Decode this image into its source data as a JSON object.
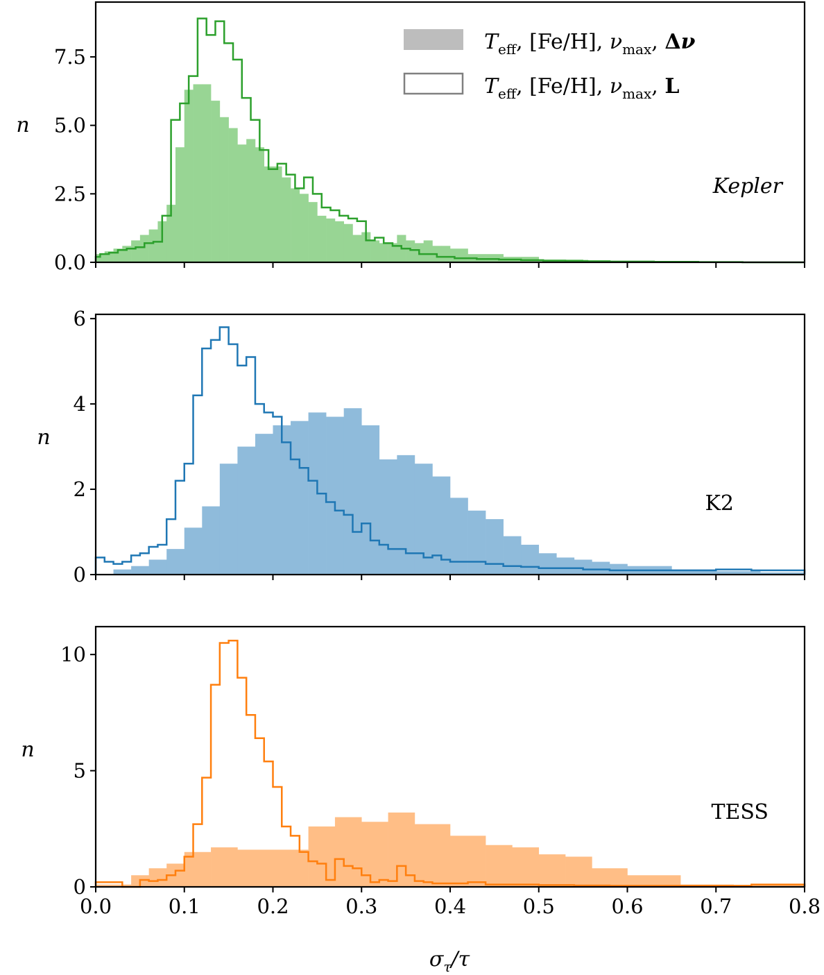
{
  "chart_data": {
    "type": "histogram",
    "xlabel": "σ_τ/τ",
    "xlim": [
      0.0,
      0.8
    ],
    "xticks": [
      0.0,
      0.1,
      0.2,
      0.3,
      0.4,
      0.5,
      0.6,
      0.7,
      0.8
    ],
    "xtick_labels": [
      "0.0",
      "0.1",
      "0.2",
      "0.3",
      "0.4",
      "0.5",
      "0.6",
      "0.7",
      "0.8"
    ],
    "legend": {
      "placement": "top-right",
      "entries": [
        {
          "style": "filled",
          "label": "T_eff, [Fe/H], ν_max, Δν",
          "color": "#bdbdbd"
        },
        {
          "style": "step",
          "label": "T_eff, [Fe/H], ν_max, L",
          "color": "#808080"
        }
      ]
    },
    "panels": [
      {
        "name": "Kepler",
        "label": "Kepler",
        "label_italic": true,
        "ylabel": "n",
        "ylim": [
          0,
          9.5
        ],
        "yticks": [
          0.0,
          2.5,
          5.0,
          7.5
        ],
        "ytick_labels": [
          "0.0",
          "2.5",
          "5.0",
          "7.5"
        ],
        "color": "#2ca02c",
        "fill_color": "#98d594",
        "filled_hist": {
          "bin_edges": [
            0.0,
            0.01,
            0.02,
            0.03,
            0.04,
            0.05,
            0.06,
            0.07,
            0.08,
            0.09,
            0.1,
            0.11,
            0.12,
            0.13,
            0.14,
            0.15,
            0.16,
            0.17,
            0.18,
            0.19,
            0.2,
            0.21,
            0.22,
            0.23,
            0.24,
            0.25,
            0.26,
            0.27,
            0.28,
            0.29,
            0.3,
            0.31,
            0.32,
            0.33,
            0.34,
            0.35,
            0.36,
            0.37,
            0.38,
            0.39,
            0.4,
            0.42,
            0.44,
            0.46,
            0.48,
            0.5,
            0.52,
            0.55,
            0.6,
            0.7,
            0.8
          ],
          "counts": [
            0.3,
            0.4,
            0.5,
            0.6,
            0.8,
            1.0,
            1.2,
            1.5,
            2.1,
            4.2,
            6.3,
            6.5,
            6.5,
            5.9,
            5.3,
            4.9,
            4.3,
            4.5,
            4.2,
            3.5,
            3.5,
            3.1,
            2.7,
            2.5,
            2.2,
            1.7,
            1.6,
            1.5,
            1.4,
            1.0,
            1.1,
            0.8,
            0.7,
            0.7,
            1.0,
            0.8,
            0.7,
            0.8,
            0.6,
            0.6,
            0.5,
            0.3,
            0.3,
            0.2,
            0.2,
            0.1,
            0.1,
            0.05,
            0.03,
            0.0
          ]
        },
        "step_hist": {
          "bin_edges": [
            0.0,
            0.005,
            0.015,
            0.025,
            0.035,
            0.045,
            0.055,
            0.065,
            0.075,
            0.085,
            0.095,
            0.105,
            0.115,
            0.125,
            0.135,
            0.145,
            0.155,
            0.165,
            0.175,
            0.185,
            0.195,
            0.205,
            0.215,
            0.225,
            0.235,
            0.245,
            0.255,
            0.265,
            0.275,
            0.285,
            0.295,
            0.305,
            0.315,
            0.325,
            0.335,
            0.345,
            0.355,
            0.365,
            0.375,
            0.385,
            0.395,
            0.405,
            0.43,
            0.455,
            0.48,
            0.505,
            0.53,
            0.555,
            0.58,
            0.63,
            0.68,
            0.73,
            0.8
          ],
          "counts": [
            0.2,
            0.3,
            0.35,
            0.45,
            0.5,
            0.55,
            0.7,
            0.75,
            1.7,
            5.2,
            5.8,
            6.8,
            8.9,
            8.3,
            8.8,
            8.0,
            7.4,
            6.0,
            5.2,
            4.1,
            3.4,
            3.6,
            3.2,
            2.7,
            3.1,
            2.5,
            2.0,
            1.9,
            1.7,
            1.6,
            1.5,
            0.8,
            0.9,
            0.7,
            0.6,
            0.5,
            0.45,
            0.3,
            0.3,
            0.2,
            0.2,
            0.15,
            0.12,
            0.1,
            0.08,
            0.06,
            0.05,
            0.04,
            0.03,
            0.02,
            0.01,
            0.0
          ]
        }
      },
      {
        "name": "K2",
        "label": "K2",
        "label_italic": false,
        "ylabel": "n",
        "ylim": [
          0,
          6.1
        ],
        "yticks": [
          0,
          2,
          4,
          6
        ],
        "ytick_labels": [
          "0",
          "2",
          "4",
          "6"
        ],
        "color": "#1f77b4",
        "fill_color": "#8fbbdb",
        "filled_hist": {
          "bin_edges": [
            0.0,
            0.02,
            0.04,
            0.06,
            0.08,
            0.1,
            0.12,
            0.14,
            0.16,
            0.18,
            0.2,
            0.22,
            0.24,
            0.26,
            0.28,
            0.3,
            0.32,
            0.34,
            0.36,
            0.38,
            0.4,
            0.42,
            0.44,
            0.46,
            0.48,
            0.5,
            0.52,
            0.54,
            0.56,
            0.58,
            0.6,
            0.65,
            0.7,
            0.75,
            0.8
          ],
          "counts": [
            0.0,
            0.12,
            0.2,
            0.35,
            0.6,
            1.1,
            1.6,
            2.6,
            3.0,
            3.3,
            3.5,
            3.6,
            3.8,
            3.7,
            3.9,
            3.5,
            2.7,
            2.8,
            2.6,
            2.3,
            1.8,
            1.5,
            1.3,
            0.9,
            0.7,
            0.5,
            0.4,
            0.35,
            0.3,
            0.25,
            0.2,
            0.12,
            0.08,
            0.05
          ]
        },
        "step_hist": {
          "bin_edges": [
            0.0,
            0.01,
            0.02,
            0.03,
            0.04,
            0.05,
            0.06,
            0.07,
            0.08,
            0.09,
            0.1,
            0.11,
            0.12,
            0.13,
            0.14,
            0.15,
            0.16,
            0.17,
            0.18,
            0.19,
            0.2,
            0.21,
            0.22,
            0.23,
            0.24,
            0.25,
            0.26,
            0.27,
            0.28,
            0.29,
            0.3,
            0.31,
            0.32,
            0.33,
            0.34,
            0.35,
            0.36,
            0.37,
            0.38,
            0.39,
            0.4,
            0.42,
            0.44,
            0.46,
            0.48,
            0.5,
            0.52,
            0.55,
            0.58,
            0.62,
            0.66,
            0.7,
            0.74,
            0.8
          ],
          "counts": [
            0.4,
            0.3,
            0.25,
            0.3,
            0.45,
            0.5,
            0.65,
            0.7,
            1.3,
            2.2,
            2.6,
            4.2,
            5.3,
            5.5,
            5.8,
            5.4,
            4.9,
            5.1,
            4.0,
            3.8,
            3.7,
            3.1,
            2.7,
            2.5,
            2.2,
            1.9,
            1.7,
            1.5,
            1.4,
            1.0,
            1.2,
            0.8,
            0.7,
            0.6,
            0.6,
            0.5,
            0.5,
            0.4,
            0.45,
            0.35,
            0.3,
            0.3,
            0.25,
            0.2,
            0.18,
            0.15,
            0.15,
            0.12,
            0.1,
            0.1,
            0.1,
            0.12,
            0.1
          ]
        }
      },
      {
        "name": "TESS",
        "label": "TESS",
        "label_italic": false,
        "ylabel": "n",
        "ylim": [
          0,
          11.2
        ],
        "yticks": [
          0,
          5,
          10
        ],
        "ytick_labels": [
          "0",
          "5",
          "10"
        ],
        "color": "#ff7f0e",
        "fill_color": "#ffbe86",
        "filled_hist": {
          "bin_edges": [
            0.0,
            0.04,
            0.06,
            0.08,
            0.1,
            0.13,
            0.16,
            0.2,
            0.24,
            0.27,
            0.3,
            0.33,
            0.36,
            0.4,
            0.44,
            0.47,
            0.5,
            0.53,
            0.56,
            0.6,
            0.66,
            0.72,
            0.8
          ],
          "counts": [
            0.1,
            0.5,
            0.8,
            1.0,
            1.5,
            1.7,
            1.6,
            1.6,
            2.6,
            3.0,
            2.8,
            3.2,
            2.7,
            2.2,
            1.8,
            1.7,
            1.4,
            1.3,
            0.8,
            0.5,
            0.1,
            0.08
          ]
        },
        "step_hist": {
          "bin_edges": [
            0.0,
            0.03,
            0.05,
            0.06,
            0.07,
            0.08,
            0.09,
            0.1,
            0.11,
            0.12,
            0.13,
            0.14,
            0.15,
            0.16,
            0.17,
            0.18,
            0.19,
            0.2,
            0.21,
            0.22,
            0.23,
            0.24,
            0.25,
            0.26,
            0.27,
            0.28,
            0.29,
            0.3,
            0.31,
            0.32,
            0.33,
            0.34,
            0.35,
            0.36,
            0.37,
            0.38,
            0.4,
            0.42,
            0.44,
            0.46,
            0.5,
            0.54,
            0.58,
            0.62,
            0.66,
            0.7,
            0.74,
            0.78,
            0.8
          ],
          "counts": [
            0.2,
            0.0,
            0.3,
            0.25,
            0.3,
            0.5,
            0.7,
            1.3,
            2.7,
            4.7,
            8.7,
            10.5,
            10.6,
            9.0,
            7.4,
            6.4,
            5.4,
            4.3,
            2.6,
            2.2,
            1.5,
            1.1,
            1.0,
            0.3,
            1.2,
            0.9,
            0.8,
            0.5,
            0.2,
            0.3,
            0.25,
            0.9,
            0.5,
            0.25,
            0.2,
            0.15,
            0.15,
            0.2,
            0.1,
            0.1,
            0.08,
            0.06,
            0.05,
            0.05,
            0.05,
            0.05,
            0.1,
            0.1
          ]
        }
      }
    ]
  }
}
